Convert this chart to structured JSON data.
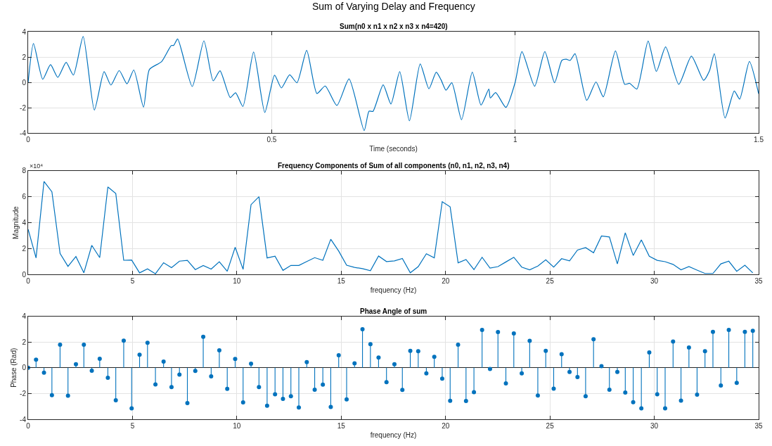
{
  "chart_data": [
    {
      "type": "line",
      "title": "Sum of Varying Delay and Frequency",
      "subtitle": "Sum(n0 x n1 x n2 x n3 x n4=420)",
      "xlabel": "Time (seconds)",
      "grid": true,
      "xlim": [
        0,
        1.5
      ],
      "xticks": [
        0,
        0.5,
        1,
        1.5
      ],
      "ylim": [
        -4,
        4
      ],
      "yticks": [
        -4,
        -2,
        0,
        2,
        4
      ],
      "series": [
        {
          "color": "#0072bd",
          "x": [
            0,
            0.011,
            0.03,
            0.046,
            0.061,
            0.078,
            0.093,
            0.113,
            0.136,
            0.156,
            0.17,
            0.187,
            0.203,
            0.217,
            0.237,
            0.249,
            0.274,
            0.294,
            0.299,
            0.307,
            0.337,
            0.361,
            0.38,
            0.394,
            0.415,
            0.426,
            0.441,
            0.463,
            0.486,
            0.506,
            0.52,
            0.537,
            0.552,
            0.572,
            0.593,
            0.61,
            0.634,
            0.659,
            0.69,
            0.7,
            0.708,
            0.729,
            0.745,
            0.763,
            0.783,
            0.805,
            0.823,
            0.838,
            0.848,
            0.858,
            0.87,
            0.89,
            0.912,
            0.93,
            0.946,
            0.949,
            0.96,
            0.981,
            1.0,
            1.014,
            1.04,
            1.061,
            1.081,
            1.096,
            1.105,
            1.113,
            1.123,
            1.147,
            1.166,
            1.181,
            1.206,
            1.225,
            1.235,
            1.25,
            1.273,
            1.29,
            1.309,
            1.336,
            1.362,
            1.387,
            1.399,
            1.409,
            1.431,
            1.45,
            1.461,
            1.481,
            1.5
          ],
          "values": [
            0,
            3.06,
            0.25,
            1.4,
            0.4,
            1.58,
            0.58,
            3.62,
            -2.17,
            0.85,
            -0.21,
            0.94,
            -0.11,
            0.98,
            -1.94,
            1.02,
            1.64,
            2.91,
            2.92,
            3.43,
            -0.32,
            3.28,
            0.13,
            0.92,
            -1.19,
            -0.81,
            -1.89,
            2.4,
            -2.36,
            0.57,
            -0.43,
            0.6,
            -0.02,
            2.53,
            -0.87,
            -0.28,
            -1.81,
            0.28,
            -3.79,
            -2.26,
            -2.28,
            -0.19,
            -1.7,
            0.85,
            -3.02,
            1.46,
            -0.5,
            0.81,
            0.2,
            -0.61,
            -0.02,
            -2.93,
            0.81,
            -1.78,
            -0.52,
            -1.22,
            -0.8,
            -1.96,
            0,
            2.43,
            -0.3,
            2.43,
            -0.02,
            1.74,
            1.83,
            1.74,
            2.26,
            -1.41,
            0.04,
            -1.13,
            2.48,
            -0.15,
            -0.07,
            -0.52,
            3.26,
            0.87,
            2.8,
            -0.15,
            2.07,
            0.17,
            0.91,
            2.26,
            -2.8,
            -0.67,
            -1.31,
            1.65,
            -0.89
          ]
        }
      ]
    },
    {
      "type": "line",
      "title": "Frequency Components of Sum of all components (n0, n1, n2, n3, n4)",
      "xlabel": "frequency (Hz)",
      "ylabel": "Magnitude",
      "annotations": [
        "×10⁴"
      ],
      "grid": true,
      "xlim": [
        0,
        35
      ],
      "xticks": [
        0,
        5,
        10,
        15,
        20,
        25,
        30,
        35
      ],
      "ylim": [
        0,
        8
      ],
      "yticks": [
        0,
        2,
        4,
        6,
        8
      ],
      "x": [
        0,
        0.38,
        0.76,
        1.14,
        1.53,
        1.91,
        2.29,
        2.67,
        3.05,
        3.43,
        3.82,
        4.2,
        4.58,
        4.96,
        5.34,
        5.72,
        6.1,
        6.49,
        6.87,
        7.25,
        7.63,
        8.01,
        8.39,
        8.77,
        9.16,
        9.54,
        9.92,
        10.3,
        10.68,
        11.06,
        11.45,
        11.83,
        12.21,
        12.59,
        12.97,
        13.35,
        13.73,
        14.12,
        14.5,
        14.88,
        15.26,
        15.64,
        16.02,
        16.4,
        16.79,
        17.17,
        17.55,
        17.93,
        18.31,
        18.69,
        19.08,
        19.46,
        19.84,
        20.22,
        20.6,
        20.98,
        21.36,
        21.75,
        22.13,
        22.51,
        22.89,
        23.27,
        23.65,
        24.03,
        24.42,
        24.8,
        25.18,
        25.56,
        25.94,
        26.32,
        26.71,
        27.09,
        27.47,
        27.85,
        28.23,
        28.61,
        28.99,
        29.38,
        29.76,
        30.14,
        30.52,
        30.9,
        31.28,
        31.66,
        32.05,
        32.43,
        32.81,
        33.19,
        33.57,
        33.95,
        34.34,
        34.72
      ],
      "series": [
        {
          "color": "#0072bd",
          "values": [
            3.49,
            1.28,
            7.18,
            6.38,
            1.62,
            0.63,
            1.39,
            0.13,
            2.25,
            1.3,
            6.76,
            6.25,
            1.1,
            1.12,
            0.13,
            0.44,
            0.06,
            0.91,
            0.53,
            1.03,
            1.09,
            0.38,
            0.69,
            0.42,
            0.99,
            0.25,
            2.1,
            0.4,
            5.39,
            6.0,
            1.28,
            1.41,
            0.32,
            0.7,
            0.7,
            1.0,
            1.3,
            1.1,
            2.72,
            1.81,
            0.72,
            0.55,
            0.45,
            0.3,
            1.43,
            1.0,
            1.05,
            1.24,
            0.13,
            0.61,
            1.6,
            1.28,
            5.62,
            5.22,
            0.9,
            1.16,
            0.38,
            1.33,
            0.5,
            0.61,
            0.97,
            1.33,
            0.57,
            0.36,
            0.65,
            1.14,
            0.57,
            1.22,
            1.05,
            1.89,
            2.08,
            1.68,
            2.97,
            2.9,
            0.82,
            3.22,
            1.47,
            2.67,
            1.41,
            1.09,
            0.99,
            0.78,
            0.36,
            0.61,
            0.34,
            0.08,
            0.08,
            0.82,
            1.03,
            0.25,
            0.72,
            0.13
          ]
        }
      ]
    },
    {
      "type": "lollipop",
      "title": "Phase Angle of sum",
      "xlabel": "frequency (Hz)",
      "ylabel": "Phase (Rad)",
      "grid": true,
      "marker": "circle",
      "xlim": [
        0,
        35
      ],
      "xticks": [
        0,
        5,
        10,
        15,
        20,
        25,
        30,
        35
      ],
      "ylim": [
        -4,
        4
      ],
      "yticks": [
        -4,
        -2,
        0,
        2,
        4
      ],
      "x": [
        0,
        0.38,
        0.76,
        1.14,
        1.53,
        1.91,
        2.29,
        2.67,
        3.05,
        3.43,
        3.82,
        4.2,
        4.58,
        4.96,
        5.34,
        5.72,
        6.1,
        6.49,
        6.87,
        7.25,
        7.63,
        8.01,
        8.39,
        8.77,
        9.16,
        9.54,
        9.92,
        10.3,
        10.68,
        11.06,
        11.45,
        11.83,
        12.21,
        12.59,
        12.97,
        13.35,
        13.73,
        14.12,
        14.5,
        14.88,
        15.26,
        15.64,
        16.02,
        16.4,
        16.79,
        17.17,
        17.55,
        17.93,
        18.31,
        18.69,
        19.08,
        19.46,
        19.84,
        20.22,
        20.6,
        20.98,
        21.36,
        21.75,
        22.13,
        22.51,
        22.89,
        23.27,
        23.65,
        24.03,
        24.42,
        24.8,
        25.18,
        25.56,
        25.94,
        26.32,
        26.71,
        27.09,
        27.47,
        27.85,
        28.23,
        28.61,
        28.99,
        29.38,
        29.76,
        30.14,
        30.52,
        30.9,
        31.28,
        31.66,
        32.05,
        32.43,
        32.81,
        33.19,
        33.57,
        33.95,
        34.34,
        34.72
      ],
      "series": [
        {
          "color": "#0072bd",
          "values": [
            0,
            0.63,
            -0.38,
            -2.13,
            1.79,
            -2.17,
            0.27,
            1.79,
            -0.23,
            0.7,
            -0.78,
            -2.53,
            2.11,
            -3.16,
            1.01,
            1.94,
            -1.3,
            0.48,
            -1.5,
            -0.53,
            -2.74,
            -0.25,
            2.4,
            -0.67,
            1.35,
            -1.64,
            0.69,
            -2.69,
            0.32,
            -1.5,
            -2.95,
            -2.06,
            -2.42,
            -2.21,
            -3.09,
            0.44,
            -1.7,
            -1.31,
            -3.05,
            0.97,
            -2.46,
            0.34,
            2.99,
            1.83,
            0.8,
            -1.12,
            0.27,
            -1.72,
            1.32,
            1.28,
            -0.43,
            0.85,
            -0.85,
            -2.57,
            1.79,
            -2.58,
            -1.89,
            2.94,
            -0.09,
            2.77,
            -1.21,
            2.66,
            -0.43,
            2.09,
            -2.15,
            1.32,
            -1.62,
            1.06,
            -0.32,
            -0.72,
            -2.21,
            2.21,
            0.13,
            -1.7,
            -0.32,
            -1.92,
            -2.68,
            -3.15,
            1.19,
            -2.06,
            -3.15,
            2.04,
            -2.55,
            1.57,
            -2.09,
            1.28,
            2.79,
            -1.38,
            2.94,
            -1.17,
            2.79,
            2.87
          ]
        }
      ]
    }
  ]
}
